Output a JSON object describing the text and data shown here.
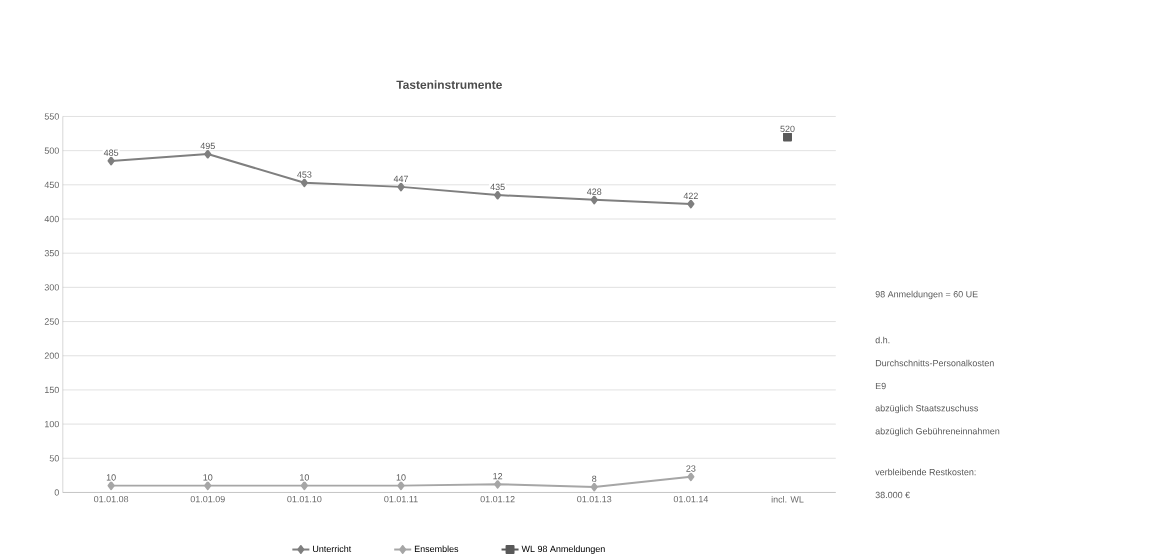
{
  "chart_data": {
    "type": "line",
    "title": "Tasteninstrumente",
    "categories": [
      "01.01.08",
      "01.01.09",
      "01.01.10",
      "01.01.11",
      "01.01.12",
      "01.01.13",
      "01.01.14",
      "incl. WL"
    ],
    "series": [
      {
        "name": "Unterricht",
        "color": "#7f7f7f",
        "marker": "diamond",
        "values": [
          485,
          495,
          453,
          447,
          435,
          428,
          422,
          null
        ]
      },
      {
        "name": "Ensembles",
        "color": "#a6a6a6",
        "marker": "diamond",
        "values": [
          10,
          10,
          10,
          10,
          12,
          8,
          23,
          null
        ]
      },
      {
        "name": "WL 98 Anmeldungen",
        "color": "#595959",
        "marker": "square",
        "values": [
          null,
          null,
          null,
          null,
          null,
          null,
          null,
          520
        ]
      }
    ],
    "ylim": [
      0,
      550
    ],
    "yticks": [
      0,
      50,
      100,
      150,
      200,
      250,
      300,
      350,
      400,
      450,
      500,
      550
    ],
    "grid": "y",
    "legend": "bottom",
    "data_labels": true,
    "annotations": [
      "98 Anmeldungen =  60 UE",
      "d.h.",
      "Durchschnitts-Personalkosten",
      "E9",
      "abzüglich Staatszuschuss",
      "abzüglich Gebühreneinnahmen",
      "verbleibende Restkosten:",
      "38.000 €"
    ]
  }
}
